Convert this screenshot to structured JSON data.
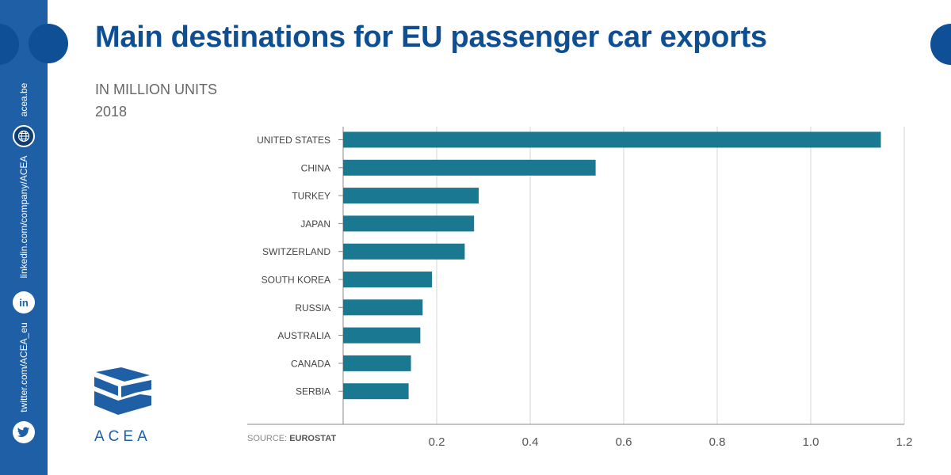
{
  "title": "Main destinations for EU passenger car exports",
  "subtitle": "IN MILLION UNITS",
  "year": "2018",
  "source_label": "SOURCE:",
  "source_name": "EUROSTAT",
  "sidebar": {
    "website": "acea.be",
    "linkedin": "linkedin.com/company/ACEA",
    "twitter": "twitter.com/ACEA_eu",
    "linkedin_glyph": "in",
    "icons": [
      "globe-icon",
      "linkedin-icon",
      "twitter-icon"
    ]
  },
  "logo_text": "ACEA",
  "colors": {
    "bar": "#1a7891",
    "brand": "#1f5fa5",
    "title": "#0d4f92"
  },
  "chart_data": {
    "type": "bar",
    "orientation": "horizontal",
    "categories": [
      "UNITED STATES",
      "CHINA",
      "TURKEY",
      "JAPAN",
      "SWITZERLAND",
      "SOUTH KOREA",
      "RUSSIA",
      "AUSTRALIA",
      "CANADA",
      "SERBIA"
    ],
    "values": [
      1.15,
      0.54,
      0.29,
      0.28,
      0.26,
      0.19,
      0.17,
      0.165,
      0.145,
      0.14
    ],
    "xlim": [
      0,
      1.2
    ],
    "xticks": [
      "0.2",
      "0.4",
      "0.6",
      "0.8",
      "1.0",
      "1.2"
    ],
    "tick_values": [
      0.2,
      0.4,
      0.6,
      0.8,
      1.0,
      1.2
    ],
    "grid": true
  }
}
